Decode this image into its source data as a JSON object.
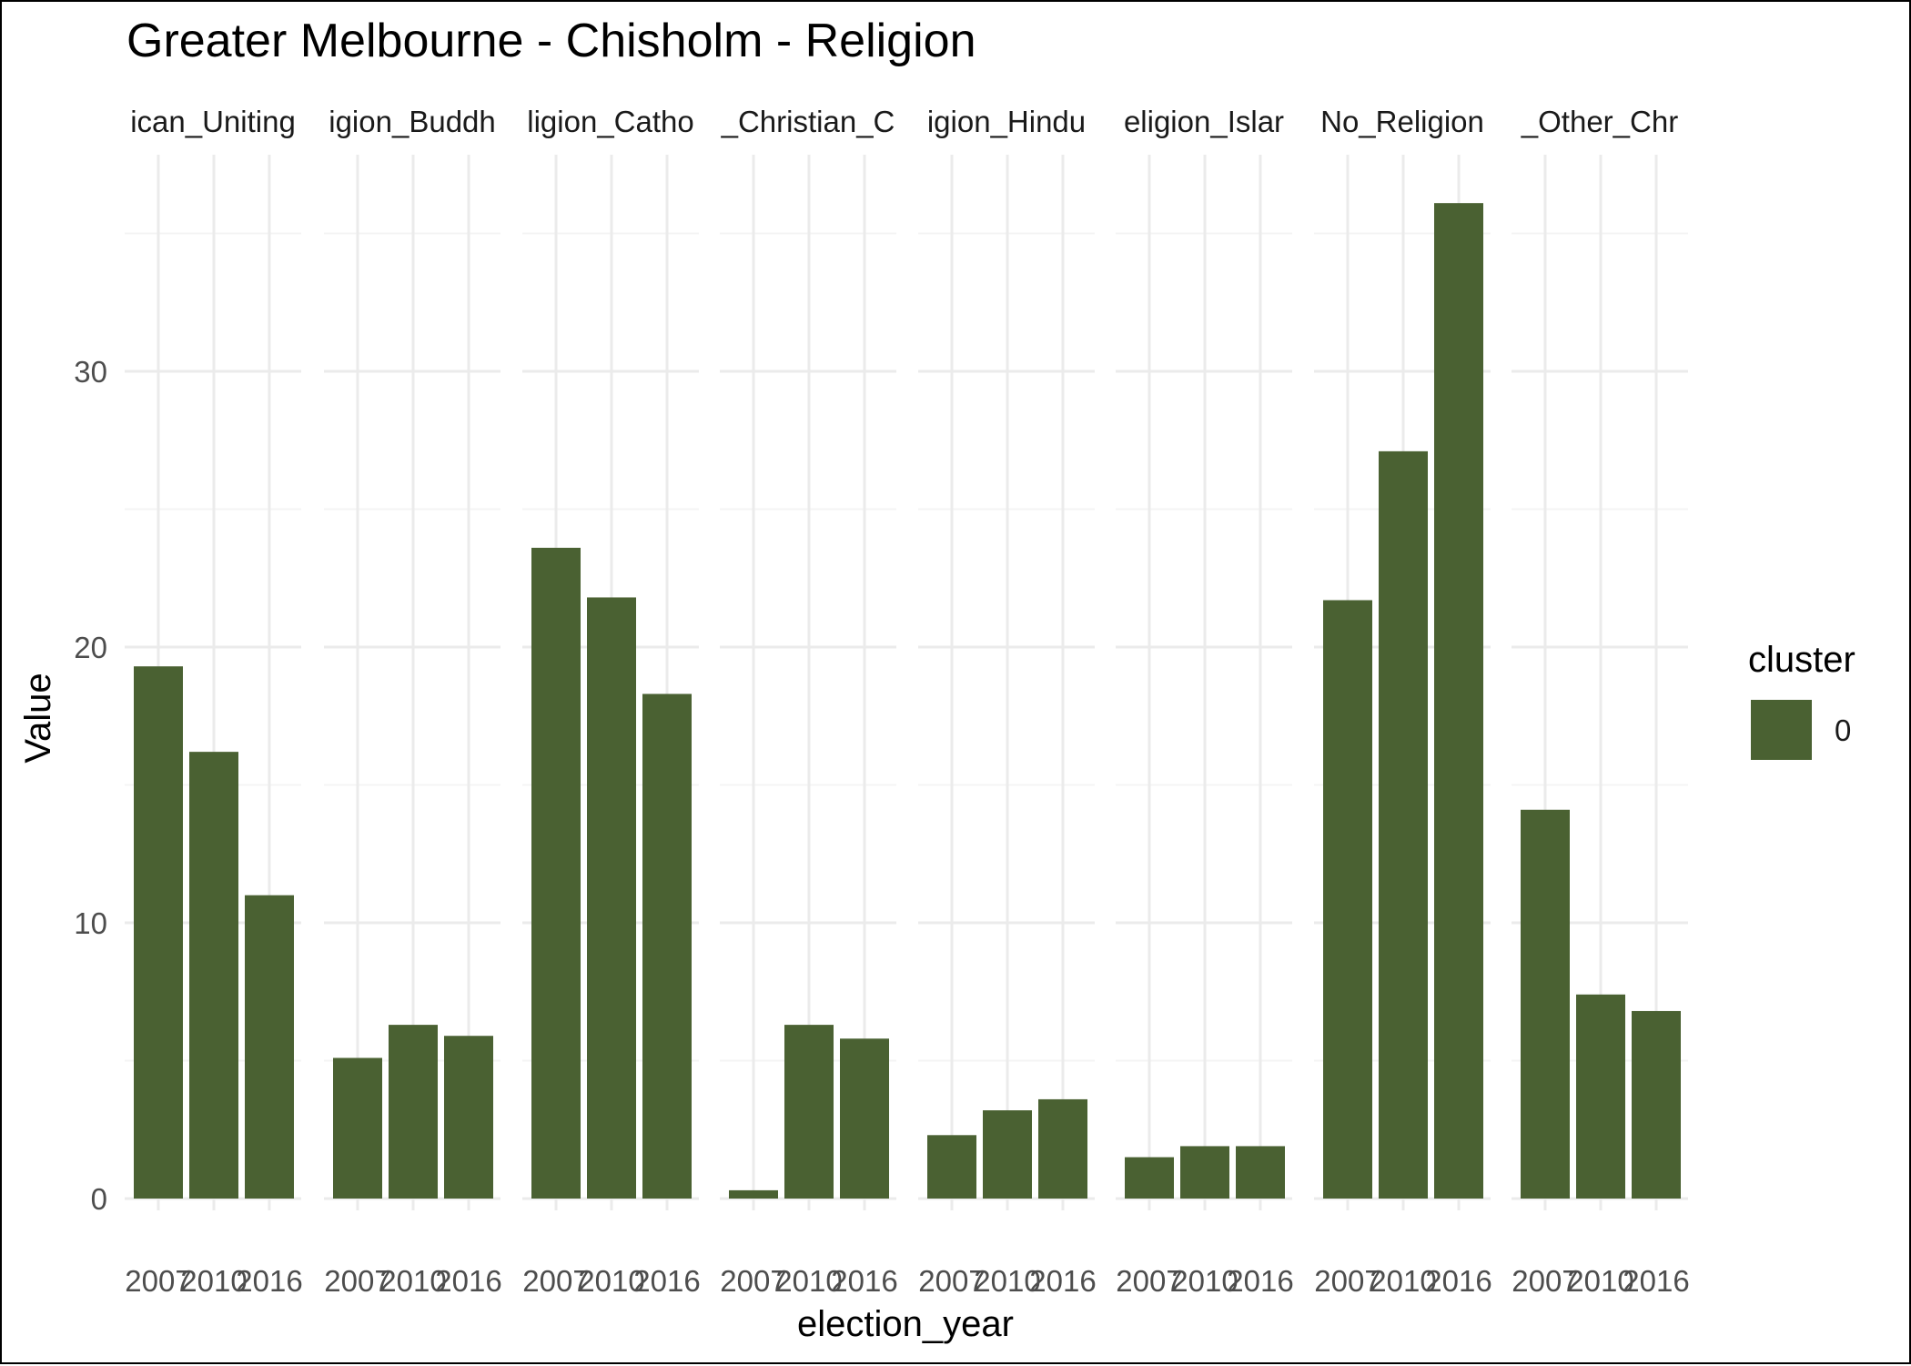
{
  "chart_data": {
    "type": "bar",
    "title": "Greater Melbourne - Chisholm - Religion",
    "xlabel": "election_year",
    "ylabel": "Value",
    "ylim": [
      0,
      37
    ],
    "y_ticks": [
      "0",
      "10",
      "20",
      "30"
    ],
    "y_tick_values": [
      0,
      10,
      20,
      30
    ],
    "grid": true,
    "categories": [
      "2007",
      "2010",
      "2016"
    ],
    "panels": [
      {
        "label": "ican_Uniting",
        "values": [
          19.3,
          16.2,
          11.0
        ]
      },
      {
        "label": "igion_Buddh",
        "values": [
          5.1,
          6.3,
          5.9
        ]
      },
      {
        "label": "ligion_Catho",
        "values": [
          23.6,
          21.8,
          18.3
        ]
      },
      {
        "label": "_Christian_C",
        "values": [
          0.3,
          6.3,
          5.8
        ]
      },
      {
        "label": "igion_Hindu",
        "values": [
          2.3,
          3.2,
          3.6
        ]
      },
      {
        "label": "eligion_Islar",
        "values": [
          1.5,
          1.9,
          1.9
        ]
      },
      {
        "label": "No_Religion",
        "values": [
          21.7,
          27.1,
          36.1
        ]
      },
      {
        "label": "_Other_Chr",
        "values": [
          14.1,
          7.4,
          6.8
        ]
      }
    ],
    "legend": {
      "title": "cluster",
      "entries": [
        "0"
      ],
      "position": "right"
    },
    "colors": {
      "bar": "#4a6132",
      "grid_major": "#ebebeb",
      "grid_minor": "#f4f4f4"
    }
  }
}
